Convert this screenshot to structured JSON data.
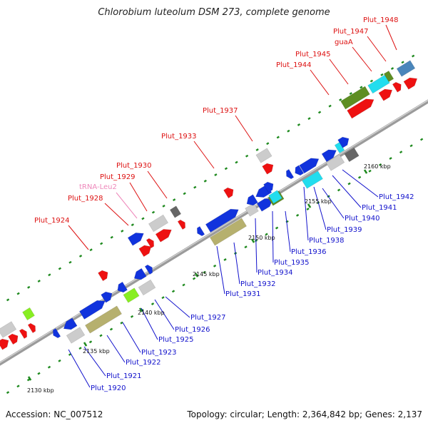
{
  "title": "Chlorobium luteolum DSM 273, complete genome",
  "footer": {
    "accession": "Accession: NC_007512",
    "summary": "Topology: circular; Length: 2,364,842 bp; Genes: 2,137"
  },
  "colors": {
    "backbone": "#9b9b9b",
    "tick": "#1f8a1f",
    "label_above": "#dd1111",
    "label_below": "#1111cc",
    "label_trna": "#ee88bb",
    "gene_red": "#ee1111",
    "gene_blue": "#1133dd",
    "gene_grey": "#cccccc",
    "gene_dark": "#666666",
    "gene_olive": "#b6b06e",
    "gene_green": "#5e8e22",
    "gene_lime": "#88ee22",
    "gene_cyan": "#22ddee",
    "gene_steel": "#4a86bb"
  },
  "kbp_labels": [
    "2130 kbp",
    "2135 kbp",
    "2140 kbp",
    "2145 kbp",
    "2150 kbp",
    "2155 kbp",
    "2160 kbp"
  ],
  "genes_above": [
    "Plut_1924",
    "Plut_1928",
    "tRNA-Leu2",
    "Plut_1929",
    "Plut_1930",
    "Plut_1933",
    "Plut_1937",
    "Plut_1944",
    "Plut_1945",
    "guaA",
    "Plut_1947",
    "Plut_1948"
  ],
  "genes_below": [
    "Plut_1920",
    "Plut_1921",
    "Plut_1922",
    "Plut_1923",
    "Plut_1925",
    "Plut_1926",
    "Plut_1927",
    "Plut_1931",
    "Plut_1932",
    "Plut_1934",
    "Plut_1935",
    "Plut_1936",
    "Plut_1938",
    "Plut_1939",
    "Plut_1940",
    "Plut_1941",
    "Plut_1942"
  ]
}
